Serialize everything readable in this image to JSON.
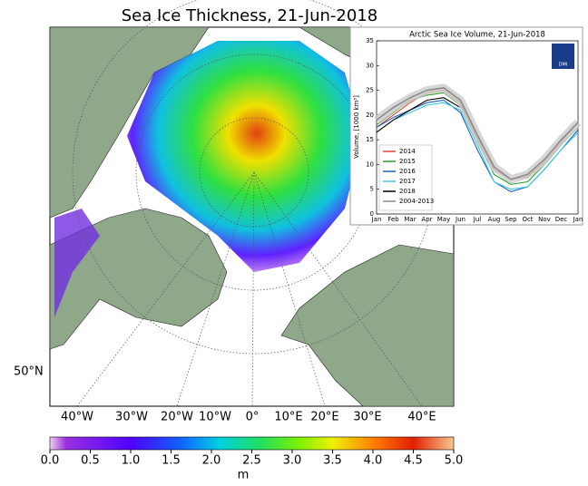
{
  "title": "Sea Ice Thickness, 21-Jun-2018",
  "map": {
    "lat_labels": [
      "50°N"
    ],
    "lon_labels": [
      "40°W",
      "30°W",
      "20°W",
      "10°W",
      "0°",
      "10°E",
      "20°E",
      "30°E",
      "40°E"
    ]
  },
  "colorbar": {
    "label": "m",
    "lim": [
      0,
      5
    ],
    "ticks": [
      {
        "value": 0,
        "label": "0.0"
      },
      0.5,
      {
        "value": 1,
        "label": "1.0"
      },
      1.5,
      {
        "value": 2,
        "label": "2.0"
      },
      2.5,
      {
        "value": 3,
        "label": "3.0"
      },
      3.5,
      {
        "value": 4,
        "label": "4.0"
      },
      4.5,
      {
        "value": 5,
        "label": "5.0"
      }
    ]
  },
  "chart_data": {
    "type": "line",
    "title": "Arctic Sea Ice Volume, 21-Jun-2018",
    "y_label": "Volume, [1000 km³]",
    "logo_text": "DMI",
    "categories": [
      "Jan",
      "Feb",
      "Mar",
      "Apr",
      "May",
      "Jun",
      "Jul",
      "Aug",
      "Sep",
      "Oct",
      "Nov",
      "Dec",
      "Jan"
    ],
    "ylim": [
      0,
      35
    ],
    "yticks": [
      0,
      5,
      10,
      15,
      20,
      25,
      30,
      35
    ],
    "series": [
      {
        "name": "2014",
        "color": "#e8453c",
        "values": [
          17.5,
          20,
          22.5,
          24.5,
          25,
          22.5,
          15.5,
          9,
          7,
          7.5,
          10.5,
          14.5,
          18.5
        ]
      },
      {
        "name": "2015",
        "color": "#2ca02c",
        "values": [
          18,
          20.5,
          23,
          24,
          24.5,
          22,
          15,
          8,
          6,
          6.5,
          10,
          14,
          17.5
        ]
      },
      {
        "name": "2016",
        "color": "#1f5fbf",
        "values": [
          17.5,
          19.5,
          21,
          22.5,
          23,
          20.5,
          13,
          6.5,
          4.5,
          5.5,
          9,
          13,
          17
        ]
      },
      {
        "name": "2017",
        "color": "#3ec8e0",
        "values": [
          16.5,
          19,
          20.5,
          22,
          22.5,
          21,
          14,
          6.5,
          5,
          5.5,
          9,
          13,
          16.5
        ]
      },
      {
        "name": "2018",
        "color": "#000000",
        "values": [
          16.5,
          19,
          21,
          23,
          23.5,
          21.5,
          null,
          null,
          null,
          null,
          null,
          null,
          null
        ]
      },
      {
        "name": "2004-2013",
        "color": "#888888",
        "values": [
          19,
          21.5,
          23.5,
          25,
          25.5,
          23,
          16,
          9.5,
          7,
          8,
          11,
          15,
          18.5
        ]
      }
    ]
  }
}
